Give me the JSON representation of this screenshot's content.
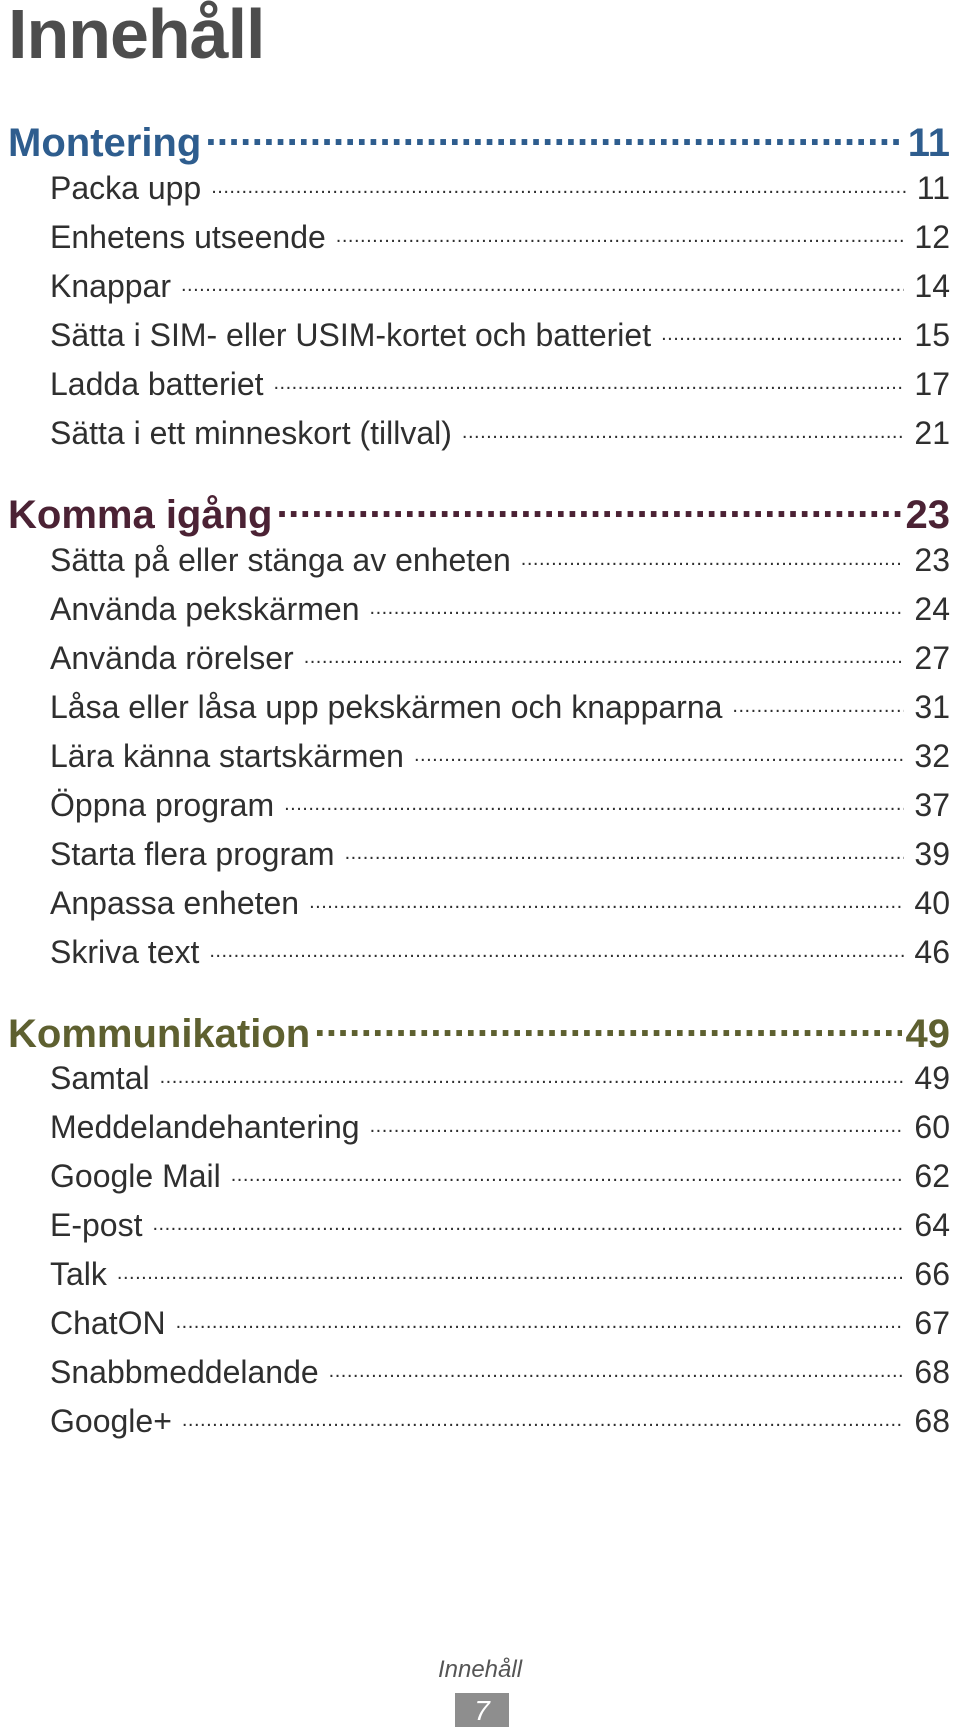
{
  "page_title": "Innehåll",
  "colors": {
    "chapter_montering": "#2e5d8e",
    "chapter_komma": "#4b2234",
    "chapter_kommunikation": "#5e6030",
    "title": "#4d4d4d",
    "footer_box": "#8e8e8e"
  },
  "chapters": [
    {
      "title": "Montering",
      "page": "11",
      "entries": [
        {
          "label": "Packa upp",
          "page": "11"
        },
        {
          "label": "Enhetens utseende",
          "page": "12"
        },
        {
          "label": "Knappar",
          "page": "14"
        },
        {
          "label": "Sätta i SIM- eller USIM-kortet och batteriet",
          "page": "15"
        },
        {
          "label": "Ladda batteriet",
          "page": "17"
        },
        {
          "label": "Sätta i ett minneskort (tillval)",
          "page": "21"
        }
      ]
    },
    {
      "title": "Komma igång",
      "page": "23",
      "entries": [
        {
          "label": "Sätta på eller stänga av enheten",
          "page": "23"
        },
        {
          "label": "Använda pekskärmen",
          "page": "24"
        },
        {
          "label": "Använda rörelser",
          "page": "27"
        },
        {
          "label": "Låsa eller låsa upp pekskärmen och knapparna",
          "page": "31"
        },
        {
          "label": "Lära känna startskärmen",
          "page": "32"
        },
        {
          "label": "Öppna program",
          "page": "37"
        },
        {
          "label": "Starta flera program",
          "page": "39"
        },
        {
          "label": "Anpassa enheten",
          "page": "40"
        },
        {
          "label": "Skriva text",
          "page": "46"
        }
      ]
    },
    {
      "title": "Kommunikation",
      "page": "49",
      "entries": [
        {
          "label": "Samtal",
          "page": "49"
        },
        {
          "label": "Meddelandehantering",
          "page": "60"
        },
        {
          "label": "Google Mail",
          "page": "62"
        },
        {
          "label": "E-post",
          "page": "64"
        },
        {
          "label": "Talk",
          "page": "66"
        },
        {
          "label": "ChatON",
          "page": "67"
        },
        {
          "label": "Snabbmeddelande",
          "page": "68"
        },
        {
          "label": "Google+",
          "page": "68"
        }
      ]
    }
  ],
  "footer": {
    "label": "Innehåll",
    "page_number": "7"
  }
}
